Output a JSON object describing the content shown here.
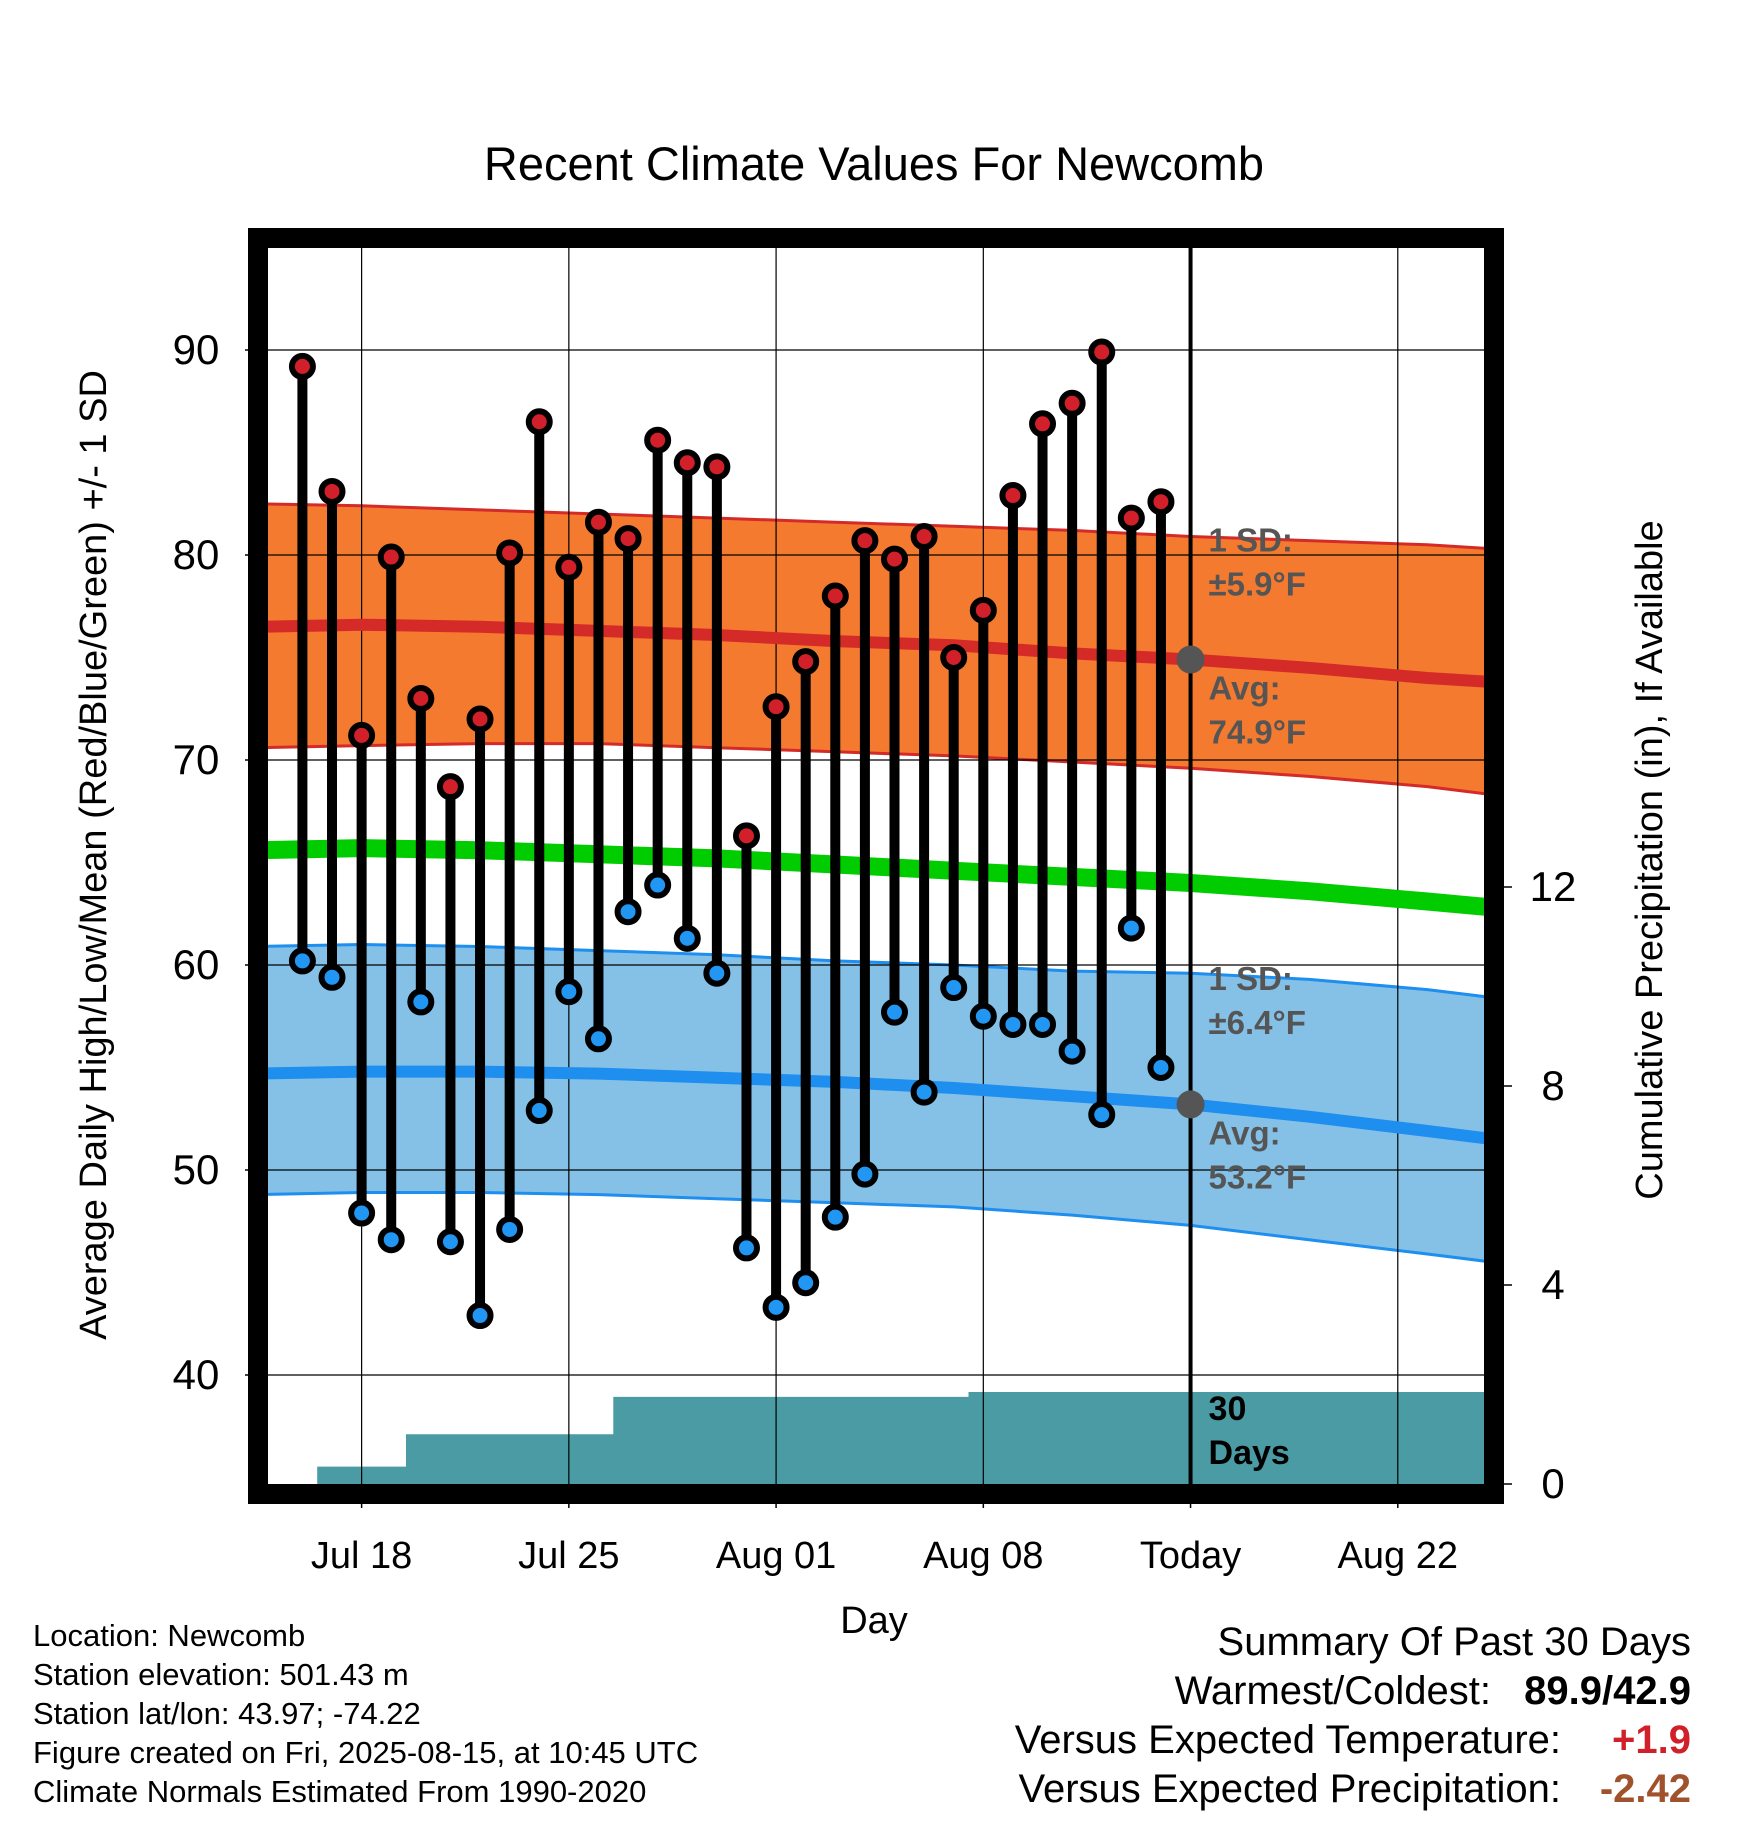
{
  "title": "Recent Climate Values For Newcomb",
  "xlabel": "Day",
  "ylabel_left": "Average Daily High/Low/Mean (Red/Blue/Green) +/- 1 SD",
  "ylabel_right": "Cumulative Precipitation (in), If Available",
  "high_sd_label": [
    "1 SD:",
    "±5.9°F"
  ],
  "high_avg_label": [
    "Avg:",
    "74.9°F"
  ],
  "low_sd_label": [
    "1 SD:",
    "±6.4°F"
  ],
  "low_avg_label": [
    "Avg:",
    "53.2°F"
  ],
  "days_label": [
    "30",
    "Days"
  ],
  "info": {
    "location": "Location: Newcomb",
    "elevation": "Station elevation: 501.43 m",
    "latlon": "Station lat/lon: 43.97; -74.22",
    "created": "Figure created on Fri, 2025-08-15, at 10:45 UTC",
    "normals": "Climate Normals Estimated From 1990-2020"
  },
  "summary": {
    "heading": "Summary Of Past 30 Days",
    "warm_cold_label": "Warmest/Coldest:",
    "warm_cold_value": "89.9/42.9",
    "temp_label": "Versus Expected Temperature:",
    "temp_value": "+1.9",
    "precip_label": "Versus Expected Precipitation:",
    "precip_value": "-2.42"
  },
  "colors": {
    "high_band": "#f47a30",
    "high_line": "#d42a28",
    "low_band": "#85c1e7",
    "low_line": "#1e8eef",
    "mean_line": "#00cc00",
    "precip": "#4a9ba3",
    "high_dot": "#d2202a",
    "low_dot": "#2196f3"
  },
  "chart_data": {
    "type": "line",
    "x_range_days": [
      -31.5,
      10.25
    ],
    "ylim_left": [
      34.8,
      95
    ],
    "ylim_right": [
      0,
      30
    ],
    "yticks_left": [
      40,
      50,
      60,
      70,
      80,
      90
    ],
    "yticks_right": [
      0,
      4,
      8,
      12
    ],
    "grid": true,
    "xticks": [
      {
        "day": -28,
        "label": "Jul 18"
      },
      {
        "day": -21,
        "label": "Jul 25"
      },
      {
        "day": -14,
        "label": "Aug 01"
      },
      {
        "day": -7,
        "label": "Aug 08"
      },
      {
        "day": 0,
        "label": "Today"
      },
      {
        "day": 7,
        "label": "Aug 22"
      }
    ],
    "today_day": 0,
    "observed": {
      "dates": [
        "Jul 16",
        "Jul 17",
        "Jul 18",
        "Jul 19",
        "Jul 20",
        "Jul 21",
        "Jul 22",
        "Jul 23",
        "Jul 24",
        "Jul 25",
        "Jul 26",
        "Jul 27",
        "Jul 28",
        "Jul 29",
        "Jul 30",
        "Jul 31",
        "Aug 01",
        "Aug 02",
        "Aug 03",
        "Aug 04",
        "Aug 05",
        "Aug 06",
        "Aug 07",
        "Aug 08",
        "Aug 09",
        "Aug 10",
        "Aug 11",
        "Aug 12",
        "Aug 13",
        "Aug 14"
      ],
      "day": [
        -30,
        -29,
        -28,
        -27,
        -26,
        -25,
        -24,
        -23,
        -22,
        -21,
        -20,
        -19,
        -18,
        -17,
        -16,
        -15,
        -14,
        -13,
        -12,
        -11,
        -10,
        -9,
        -8,
        -7,
        -6,
        -5,
        -4,
        -3,
        -2,
        -1
      ],
      "high": [
        89.2,
        83.1,
        71.2,
        79.9,
        73.0,
        68.7,
        72.0,
        80.1,
        86.5,
        79.4,
        81.6,
        80.8,
        85.6,
        84.5,
        84.3,
        66.3,
        72.6,
        74.8,
        78.0,
        80.7,
        79.8,
        80.9,
        75.0,
        77.3,
        82.9,
        86.4,
        87.4,
        89.9,
        81.8,
        82.6
      ],
      "low": [
        60.2,
        59.4,
        47.9,
        46.6,
        58.2,
        46.5,
        42.9,
        47.1,
        52.9,
        58.7,
        56.4,
        62.6,
        63.9,
        61.3,
        59.6,
        46.2,
        43.3,
        44.5,
        47.7,
        49.8,
        57.7,
        53.8,
        58.9,
        57.5,
        57.1,
        57.1,
        55.8,
        52.7,
        61.8,
        55.0
      ]
    },
    "normals": {
      "day": [
        -31.5,
        -28,
        -24,
        -20,
        -16,
        -12,
        -8,
        -4,
        0,
        4,
        8,
        10.25
      ],
      "high_avg": [
        76.5,
        76.6,
        76.5,
        76.3,
        76.1,
        75.8,
        75.6,
        75.2,
        74.9,
        74.5,
        74.0,
        73.8
      ],
      "high_upper": [
        82.5,
        82.4,
        82.2,
        82.0,
        81.8,
        81.6,
        81.4,
        81.2,
        80.9,
        80.7,
        80.5,
        80.3
      ],
      "high_lower": [
        70.6,
        70.7,
        70.8,
        70.8,
        70.6,
        70.4,
        70.2,
        69.9,
        69.6,
        69.2,
        68.7,
        68.3
      ],
      "mean": [
        65.6,
        65.7,
        65.6,
        65.4,
        65.2,
        64.9,
        64.6,
        64.3,
        64.0,
        63.6,
        63.1,
        62.8
      ],
      "low_avg": [
        54.7,
        54.8,
        54.8,
        54.7,
        54.5,
        54.3,
        54.0,
        53.6,
        53.2,
        52.6,
        51.9,
        51.5
      ],
      "low_upper": [
        60.9,
        61.0,
        60.9,
        60.7,
        60.5,
        60.2,
        60.0,
        59.7,
        59.6,
        59.3,
        58.8,
        58.4
      ],
      "low_lower": [
        48.8,
        48.9,
        48.9,
        48.8,
        48.6,
        48.4,
        48.2,
        47.8,
        47.3,
        46.6,
        45.9,
        45.5
      ]
    },
    "precip_cumulative": {
      "day": [
        -31.5,
        -30.5,
        -29.5,
        -29.5,
        -28.5,
        -27.5,
        -26.5,
        -26.5,
        -25.5,
        -20.5,
        -20.5,
        -19.5,
        -19.5,
        -17.5,
        -16.5,
        -16.5,
        -15.5,
        -8.5,
        -8.5,
        -7.5,
        -7.5,
        10.25
      ],
      "inches": [
        0,
        0,
        0,
        0.35,
        0.35,
        0.35,
        0.35,
        1.0,
        1.0,
        1.0,
        1.0,
        1.0,
        1.75,
        1.75,
        1.75,
        1.75,
        1.75,
        1.75,
        1.75,
        1.75,
        1.85,
        1.85
      ]
    }
  }
}
